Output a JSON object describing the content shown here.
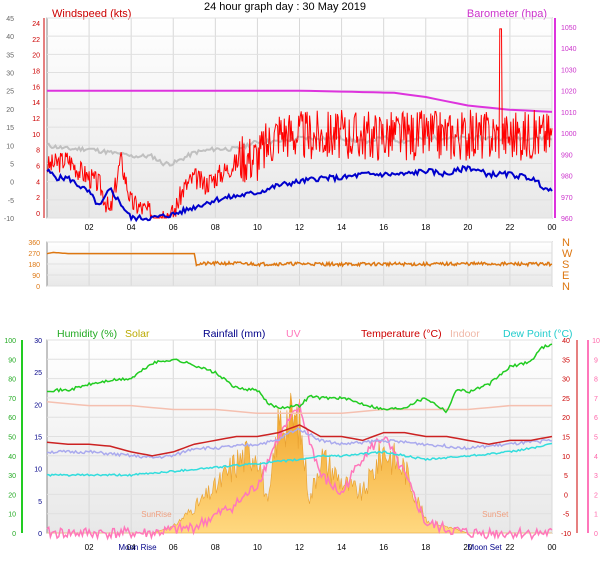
{
  "title": "24 hour graph day : 30 May 2019",
  "colors": {
    "wind": "#ff0000",
    "avg": "#0000cc",
    "gust_bg": "#c0c0c0",
    "baro": "#dd33dd",
    "dir": "#dd7711",
    "humidity": "#22cc22",
    "solar": "#f5b030",
    "solar_label": "#bbaa00",
    "rain": "#000088",
    "uv": "#ff77bb",
    "temp": "#cc2222",
    "indoor": "#f5c0b0",
    "dew": "#33dddd",
    "apparent": "#aaaaee"
  },
  "x_ticks": [
    "02",
    "04",
    "06",
    "08",
    "10",
    "12",
    "14",
    "16",
    "18",
    "20",
    "22",
    "00"
  ],
  "panel1": {
    "left_label": "Windspeed (kts)",
    "right_label": "Barometer (hpa)",
    "left_ticks_outer": [
      "-10",
      "-5",
      "0",
      "5",
      "10",
      "15",
      "20",
      "25",
      "30",
      "35",
      "40",
      "45"
    ],
    "left_ticks_inner": [
      "0",
      "2",
      "4",
      "6",
      "8",
      "10",
      "12",
      "14",
      "16",
      "18",
      "20",
      "22",
      "24"
    ],
    "right_ticks": [
      "960",
      "970",
      "980",
      "990",
      "1000",
      "1010",
      "1020",
      "1030",
      "1040",
      "1050"
    ]
  },
  "panel2": {
    "left_ticks": [
      "0",
      "90",
      "180",
      "270",
      "360"
    ],
    "compass": [
      "N",
      "W",
      "S",
      "E",
      "N"
    ]
  },
  "panel3": {
    "legend": {
      "humidity": "Humidity (%)",
      "solar": "Solar",
      "rain": "Rainfall (mm)",
      "uv": "UV",
      "temp": "Temperature (°C)",
      "indoor": "Indoor",
      "dew": "Dew Point (°C)"
    },
    "hum_ticks": [
      "0",
      "10",
      "20",
      "30",
      "40",
      "50",
      "60",
      "70",
      "80",
      "90",
      "100"
    ],
    "rain_ticks": [
      "0",
      "5",
      "10",
      "15",
      "20",
      "25",
      "30"
    ],
    "temp_ticks": [
      "-10",
      "-5",
      "0",
      "5",
      "10",
      "15",
      "20",
      "25",
      "30",
      "35",
      "40"
    ],
    "uv_ticks": [
      "0",
      "1",
      "2",
      "3",
      "4",
      "5",
      "6",
      "7",
      "8",
      "9",
      "10"
    ],
    "annotations": {
      "sunrise": "SunRise",
      "sunset": "SunSet",
      "moonrise": "Moon Rise",
      "moonset": "Moon Set"
    }
  },
  "chart_data": [
    {
      "type": "line",
      "title": "24 hour graph day : 30 May 2019",
      "xlabel": "",
      "x_range_hours": [
        0,
        24
      ],
      "ylabel": "Windspeed (kts)",
      "ylim": [
        -10,
        45
      ],
      "y2label": "Barometer (hpa)",
      "y2lim": [
        960,
        1050
      ],
      "series": [
        {
          "name": "Windspeed (kts)",
          "x": [
            0,
            1,
            1.5,
            2,
            2.5,
            3,
            3.5,
            4,
            5,
            6,
            6.5,
            7,
            7.5,
            8,
            9,
            10,
            11,
            12,
            13,
            14,
            15,
            16,
            17,
            18,
            19,
            20,
            21,
            22,
            23,
            24
          ],
          "y": [
            3,
            5,
            2,
            0,
            -2,
            -10,
            5,
            -7,
            -10,
            -10,
            -3,
            0,
            -2,
            0,
            4,
            4,
            11,
            10,
            10,
            10,
            10,
            10,
            10,
            10,
            10,
            10,
            10,
            10,
            10,
            10
          ]
        },
        {
          "name": "Gust",
          "x": [
            0,
            1,
            2,
            3,
            4,
            5,
            6,
            7,
            8,
            9,
            10,
            11,
            12,
            13,
            14,
            15,
            16,
            17,
            18,
            19,
            20,
            21,
            22,
            23,
            24
          ],
          "y": [
            6,
            7,
            4,
            2,
            0,
            -4,
            0,
            1,
            3,
            8,
            12,
            14,
            15,
            15,
            16,
            15,
            15,
            16,
            15,
            16,
            16,
            17,
            17,
            16,
            15
          ]
        },
        {
          "name": "Average",
          "x": [
            0,
            0.5,
            1,
            1.5,
            2,
            2.5,
            3,
            4,
            5,
            6,
            7,
            8,
            9,
            10,
            11,
            12,
            13,
            14,
            15,
            16,
            17,
            18,
            19,
            20,
            21,
            22,
            23,
            24
          ],
          "y": [
            3,
            1,
            1,
            -1,
            -3,
            -7,
            -2,
            -10,
            -10,
            -9,
            -7,
            -5,
            -4,
            -3,
            -1,
            0,
            1,
            1,
            2,
            2,
            2,
            3,
            2,
            4,
            2,
            2,
            1,
            -3
          ]
        },
        {
          "name": "Smoothed",
          "x": [
            0,
            1,
            2,
            3,
            4,
            5,
            5.5,
            6,
            7,
            8,
            9,
            10,
            11,
            12,
            13,
            14,
            15,
            16,
            17,
            18,
            19,
            20,
            21,
            22,
            23,
            24
          ],
          "y": [
            10,
            9,
            9,
            8,
            7,
            7,
            5,
            5,
            8,
            9,
            9,
            11,
            11,
            12,
            12,
            12,
            11,
            12,
            11,
            12,
            12,
            12,
            12,
            12,
            12,
            12
          ]
        },
        {
          "name": "Barometer (hpa)",
          "axis": "right",
          "x": [
            0,
            6,
            12,
            16.5,
            18,
            20,
            21,
            22,
            24
          ],
          "y": [
            1020,
            1020,
            1020,
            1019,
            1017,
            1013,
            1012,
            1011,
            1010
          ]
        }
      ]
    },
    {
      "type": "line",
      "ylim": [
        0,
        360
      ],
      "series": [
        {
          "name": "Wind direction",
          "x": [
            0,
            0.3,
            1,
            2,
            4,
            6,
            7,
            7.1,
            8,
            9,
            10,
            12,
            14,
            16,
            18,
            20,
            22,
            24
          ],
          "y": [
            265,
            275,
            265,
            265,
            265,
            265,
            265,
            180,
            185,
            185,
            180,
            182,
            178,
            180,
            178,
            182,
            180,
            180
          ]
        }
      ]
    },
    {
      "type": "line",
      "series": [
        {
          "name": "Humidity (%)",
          "axis": "hum",
          "ylim": [
            0,
            100
          ],
          "x": [
            0,
            1,
            2,
            3,
            4,
            5,
            6,
            7,
            8,
            9,
            10,
            10.5,
            11,
            12,
            12.5,
            13,
            14,
            15,
            16,
            17,
            17.5,
            18,
            19,
            19.5,
            20,
            21,
            22,
            23,
            23.5,
            24
          ],
          "y": [
            74,
            74,
            77,
            79,
            80,
            88,
            90,
            87,
            83,
            75,
            74,
            67,
            65,
            66,
            71,
            70,
            70,
            67,
            64,
            65,
            68,
            70,
            63,
            75,
            73,
            77,
            86,
            89,
            96,
            98
          ]
        },
        {
          "name": "Indoor",
          "axis": "temp",
          "ylim": [
            -10,
            40
          ],
          "x": [
            0,
            2,
            4,
            6,
            8,
            10,
            12,
            14,
            16,
            18,
            20,
            22,
            24
          ],
          "y": [
            24,
            23,
            23,
            22,
            22,
            21,
            21,
            21,
            22,
            22,
            22,
            23,
            23
          ]
        },
        {
          "name": "Temperature (°C)",
          "axis": "temp",
          "ylim": [
            -10,
            40
          ],
          "x": [
            0,
            1,
            2,
            3,
            4,
            5,
            6,
            7,
            8,
            9,
            10,
            11,
            11.5,
            12,
            13,
            14,
            15,
            16,
            17,
            18,
            19,
            20,
            21,
            22,
            23,
            24
          ],
          "y": [
            13.5,
            13,
            13,
            12.5,
            11,
            10,
            11,
            13,
            14,
            15,
            15,
            16,
            17,
            18,
            15,
            15,
            14,
            16,
            16,
            15,
            15,
            14,
            13,
            14,
            14,
            15
          ]
        },
        {
          "name": "Apparent",
          "axis": "temp",
          "ylim": [
            -10,
            40
          ],
          "x": [
            0,
            2,
            4,
            5,
            6,
            7,
            8,
            10,
            11,
            11.5,
            12,
            13,
            14,
            16,
            18,
            20,
            22,
            24
          ],
          "y": [
            11,
            11,
            10,
            9.5,
            10,
            12,
            12,
            13,
            14,
            16,
            17,
            14,
            13,
            14,
            13,
            12,
            13,
            14
          ]
        },
        {
          "name": "Dew Point (°C)",
          "axis": "temp",
          "ylim": [
            -10,
            40
          ],
          "x": [
            0,
            2,
            4,
            6,
            8,
            10,
            12,
            13,
            14,
            16,
            18,
            20,
            22,
            24
          ],
          "y": [
            5,
            5,
            5,
            6,
            7,
            8,
            9,
            10,
            10,
            11,
            9,
            10,
            11,
            13
          ]
        },
        {
          "name": "Solar",
          "axis": "rain",
          "ylim": [
            0,
            30
          ],
          "x": [
            0,
            5,
            6,
            7,
            8,
            9,
            10,
            10.5,
            11,
            11.5,
            12,
            12.5,
            13,
            14,
            15,
            16,
            17,
            18,
            19,
            20,
            24
          ],
          "y": [
            0,
            0,
            1,
            4,
            7,
            11,
            13,
            4,
            17,
            18,
            17,
            5,
            12,
            8,
            6,
            13,
            10,
            2,
            1,
            0,
            0
          ]
        },
        {
          "name": "UV",
          "axis": "uv",
          "ylim": [
            0,
            10
          ],
          "x": [
            0,
            5,
            7,
            9,
            10,
            11,
            12,
            13,
            14,
            15,
            16,
            17,
            18,
            19,
            20,
            24
          ],
          "y": [
            0,
            0,
            0.3,
            1.5,
            2.5,
            5,
            6.5,
            3,
            2,
            4,
            5,
            3,
            0.5,
            0.2,
            0,
            0
          ]
        }
      ]
    }
  ]
}
